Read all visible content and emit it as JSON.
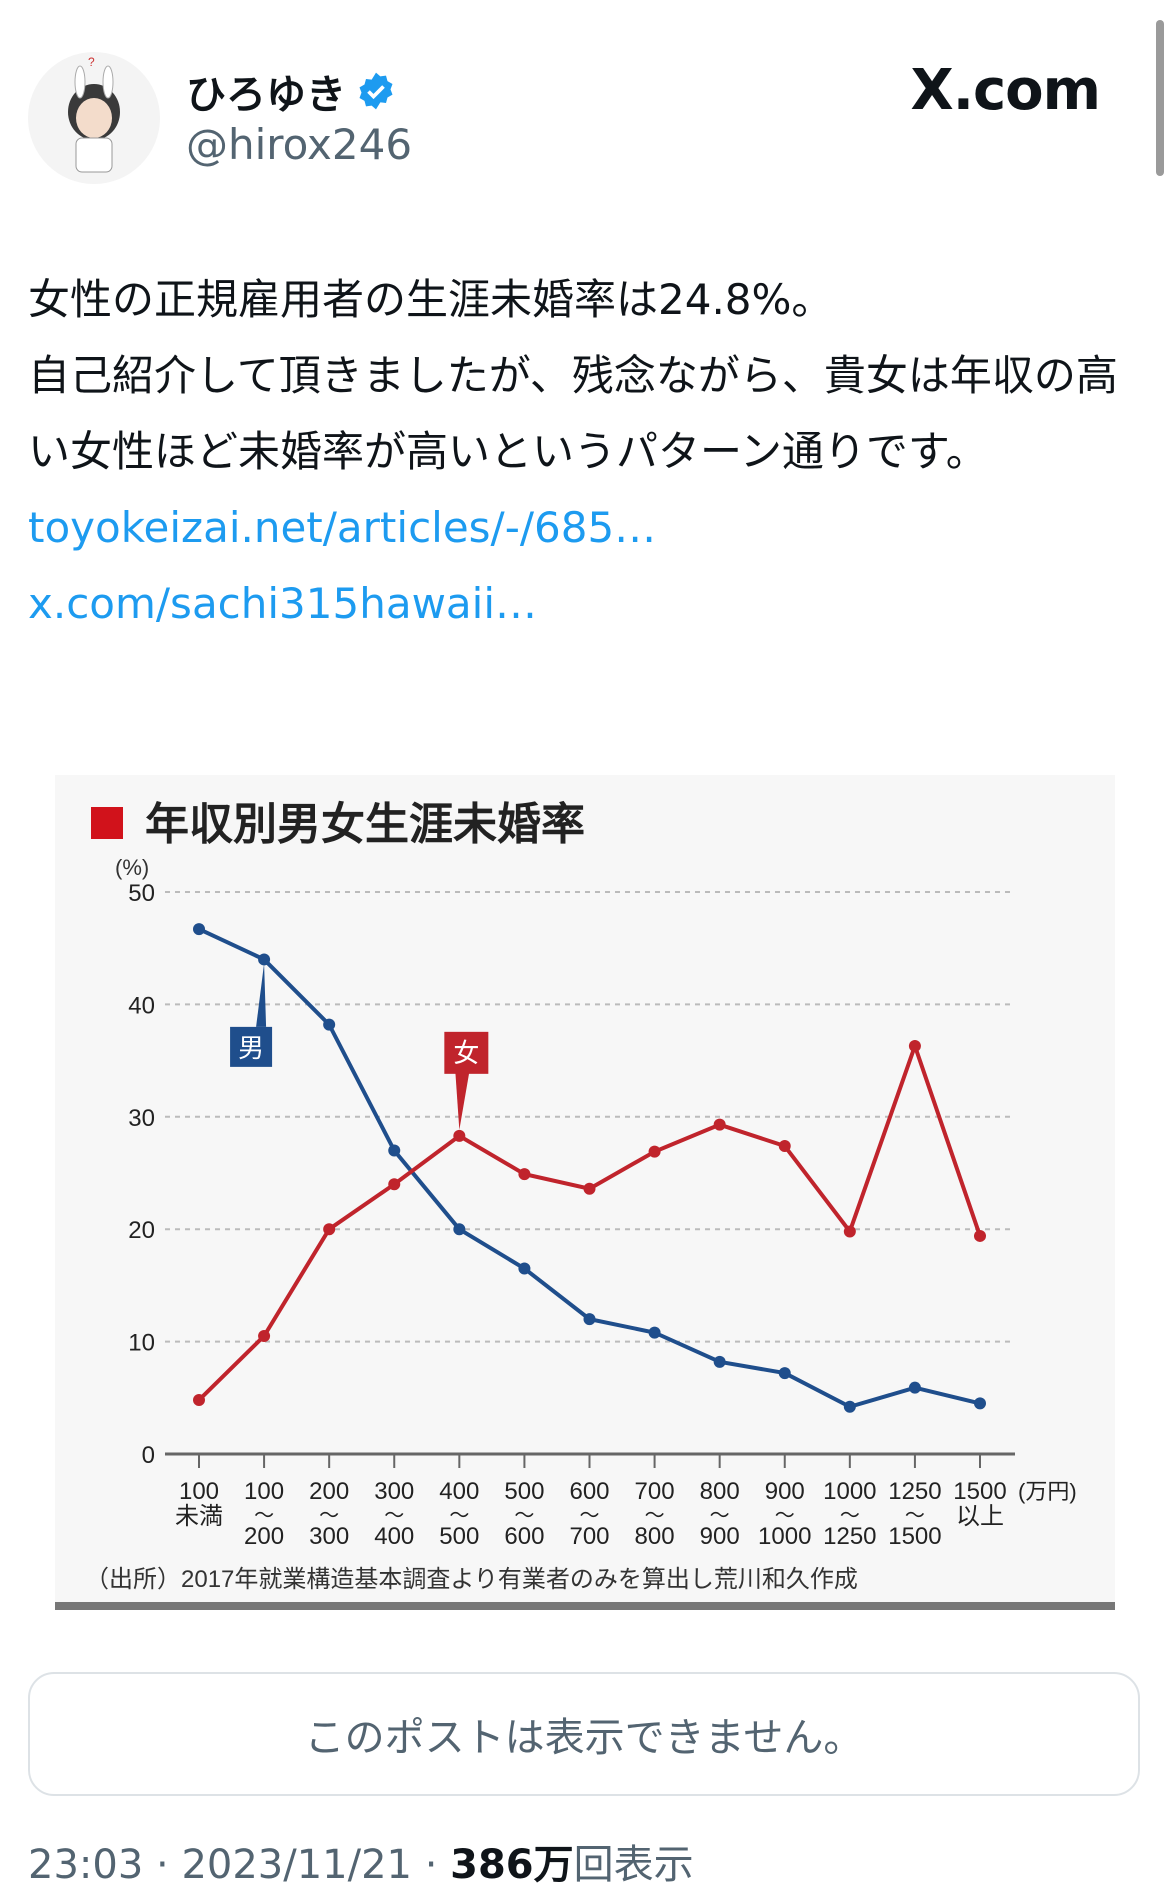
{
  "user": {
    "name": "ひろゆき",
    "handle": "@hirox246",
    "verified": true
  },
  "site": "X.com",
  "post": {
    "text": "女性の正規雇用者の生涯未婚率は24.8%。\n自己紹介して頂きましたが、残念ながら、貴女は年収の高い女性ほど未婚率が高いというパターン通りです。",
    "link1": "toyokeizai.net/articles/-/685…",
    "link2": "x.com/sachi315hawaii…"
  },
  "quote_unavailable": "このポストは表示できません。",
  "meta": {
    "time": "23:03",
    "date": "2023/11/21",
    "views": "386万",
    "views_label": "回表示",
    "sep": " · "
  },
  "colors": {
    "male": "#1f4e8c",
    "female": "#c0242c",
    "link": "#1d9bf0"
  },
  "chart_data": {
    "type": "line",
    "title": "年収別男女生涯未婚率",
    "ylabel": "(%)",
    "xunit": "(万円)",
    "ylim": [
      0,
      50
    ],
    "yticks": [
      0,
      10,
      20,
      30,
      40,
      50
    ],
    "grid": true,
    "categories": [
      [
        "100",
        "未満"
      ],
      [
        "100",
        "～",
        "200"
      ],
      [
        "200",
        "～",
        "300"
      ],
      [
        "300",
        "～",
        "400"
      ],
      [
        "400",
        "～",
        "500"
      ],
      [
        "500",
        "～",
        "600"
      ],
      [
        "600",
        "～",
        "700"
      ],
      [
        "700",
        "～",
        "800"
      ],
      [
        "800",
        "～",
        "900"
      ],
      [
        "900",
        "～",
        "1000"
      ],
      [
        "1000",
        "～",
        "1250"
      ],
      [
        "1250",
        "～",
        "1500"
      ],
      [
        "1500",
        "以上"
      ]
    ],
    "series": [
      {
        "name": "男",
        "values": [
          46.7,
          44.0,
          38.2,
          27.0,
          20.0,
          16.5,
          12.0,
          10.8,
          8.2,
          7.2,
          4.2,
          5.9,
          4.5
        ]
      },
      {
        "name": "女",
        "values": [
          4.8,
          10.5,
          20.0,
          24.0,
          28.3,
          24.9,
          23.6,
          26.9,
          29.3,
          27.4,
          19.8,
          36.3,
          19.4
        ]
      }
    ],
    "source": "（出所）2017年就業構造基本調査より有業者のみを算出し荒川和久作成"
  }
}
